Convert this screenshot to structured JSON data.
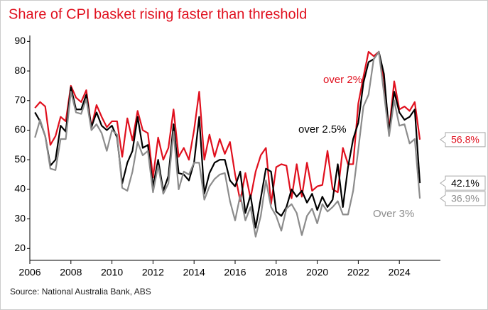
{
  "chart_data": {
    "type": "line",
    "title": "Share of CPI basket rising faster than threshold",
    "source": "Source: National Australia Bank, ABS",
    "x": [
      2006.25,
      2006.5,
      2006.75,
      2007,
      2007.25,
      2007.5,
      2007.75,
      2008,
      2008.25,
      2008.5,
      2008.75,
      2009,
      2009.25,
      2009.5,
      2009.75,
      2010,
      2010.25,
      2010.5,
      2010.75,
      2011,
      2011.25,
      2011.5,
      2011.75,
      2012,
      2012.25,
      2012.5,
      2012.75,
      2013,
      2013.25,
      2013.5,
      2013.75,
      2014,
      2014.25,
      2014.5,
      2014.75,
      2015,
      2015.25,
      2015.5,
      2015.75,
      2016,
      2016.25,
      2016.5,
      2016.75,
      2017,
      2017.25,
      2017.5,
      2017.75,
      2018,
      2018.25,
      2018.5,
      2018.75,
      2019,
      2019.25,
      2019.5,
      2019.75,
      2020,
      2020.25,
      2020.5,
      2020.75,
      2021,
      2021.25,
      2021.5,
      2021.75,
      2022,
      2022.25,
      2022.5,
      2022.75,
      2023,
      2023.25,
      2023.5,
      2023.75,
      2024,
      2024.25,
      2024.5,
      2024.75,
      2025
    ],
    "series": [
      {
        "name": "over 2%",
        "color": "#e0101e",
        "values": [
          67.5,
          69.5,
          68,
          55,
          58,
          64.5,
          63,
          75,
          71,
          69.5,
          73.5,
          61,
          68.5,
          64.5,
          61,
          63,
          63,
          51,
          64,
          56.5,
          66.5,
          60,
          59,
          44,
          57.5,
          50,
          54,
          67,
          51,
          54,
          50,
          60,
          73,
          50,
          58.5,
          51,
          57,
          52,
          56,
          45,
          36,
          45.5,
          37,
          46,
          51.5,
          54,
          35,
          47.5,
          48.5,
          48,
          37,
          48.5,
          37.5,
          49,
          39.5,
          41,
          41.5,
          53,
          40,
          39,
          54,
          48.5,
          48.5,
          69,
          78,
          86.5,
          85,
          86.5,
          77,
          60,
          76.5,
          67,
          68,
          66.5,
          69.5,
          56.8
        ],
        "value_labels": [
          null,
          null,
          null,
          null,
          null,
          null,
          null,
          null,
          null,
          null,
          null,
          null,
          null,
          null,
          null,
          null,
          null,
          null,
          null,
          null,
          null,
          null,
          null,
          null,
          null,
          null,
          null,
          null,
          null,
          null,
          null,
          null,
          null,
          null,
          null,
          null,
          null,
          null,
          null,
          null,
          null,
          null,
          null,
          null,
          null,
          null,
          null,
          null,
          null,
          null,
          null,
          null,
          null,
          null,
          null,
          null,
          null,
          null,
          null,
          null,
          null,
          null,
          null,
          null,
          null,
          null,
          null,
          null,
          null,
          null,
          null,
          null,
          null,
          null,
          null,
          "56.8%"
        ]
      },
      {
        "name": "over 2.5%",
        "color": "#000000",
        "values": [
          66,
          63,
          58,
          48,
          50,
          61.5,
          59.5,
          74.5,
          67,
          67,
          72,
          61,
          66,
          61.5,
          60,
          61.5,
          57.5,
          42,
          49,
          53,
          64.5,
          54,
          55,
          41,
          50,
          39.5,
          44.5,
          62,
          45.5,
          45,
          43,
          49,
          64.5,
          38.5,
          45.5,
          49,
          50,
          50,
          43,
          41,
          46,
          32,
          38,
          27,
          37,
          47,
          46,
          32.5,
          31,
          34,
          40,
          37.5,
          39.5,
          35.5,
          38.5,
          33,
          37.5,
          34,
          36.5,
          48.5,
          34,
          47.5,
          57,
          62.5,
          76,
          83,
          84,
          86.5,
          79,
          59,
          73,
          66,
          63.5,
          64.5,
          67,
          42.1
        ],
        "value_labels": [
          null,
          null,
          null,
          null,
          null,
          null,
          null,
          null,
          null,
          null,
          null,
          null,
          null,
          null,
          null,
          null,
          null,
          null,
          null,
          null,
          null,
          null,
          null,
          null,
          null,
          null,
          null,
          null,
          null,
          null,
          null,
          null,
          null,
          null,
          null,
          null,
          null,
          null,
          null,
          null,
          null,
          null,
          null,
          null,
          null,
          null,
          null,
          null,
          null,
          null,
          null,
          null,
          null,
          null,
          null,
          null,
          null,
          null,
          null,
          null,
          null,
          null,
          null,
          null,
          null,
          null,
          null,
          null,
          null,
          null,
          null,
          null,
          null,
          null,
          null,
          "42.1%"
        ]
      },
      {
        "name": "Over 3%",
        "color": "#8c8c8c",
        "values": [
          57.5,
          63.5,
          58,
          47,
          46.5,
          57,
          57,
          73,
          66,
          65.5,
          70.5,
          60,
          62,
          59,
          53,
          60,
          58.5,
          40.5,
          39.5,
          46,
          56,
          51.5,
          53,
          39,
          48,
          38.5,
          42,
          59.5,
          40,
          46,
          45,
          49,
          49,
          36.5,
          41,
          43.5,
          45,
          45.5,
          36,
          29.5,
          38,
          29.5,
          34,
          24,
          31,
          43,
          34,
          31,
          26,
          33.5,
          35,
          32,
          24.5,
          31,
          33.5,
          28.5,
          35,
          32.5,
          34,
          36,
          31.5,
          31.5,
          39.5,
          53.5,
          68,
          72,
          84,
          86.5,
          72.5,
          58,
          70,
          61.5,
          62,
          55.5,
          57,
          36.9
        ],
        "value_labels": [
          null,
          null,
          null,
          null,
          null,
          null,
          null,
          null,
          null,
          null,
          null,
          null,
          null,
          null,
          null,
          null,
          null,
          null,
          null,
          null,
          null,
          null,
          null,
          null,
          null,
          null,
          null,
          null,
          null,
          null,
          null,
          null,
          null,
          null,
          null,
          null,
          null,
          null,
          null,
          null,
          null,
          null,
          null,
          null,
          null,
          null,
          null,
          null,
          null,
          null,
          null,
          null,
          null,
          null,
          null,
          null,
          null,
          null,
          null,
          null,
          null,
          null,
          null,
          null,
          null,
          null,
          null,
          null,
          null,
          null,
          null,
          null,
          null,
          null,
          null,
          "36.9%"
        ]
      }
    ],
    "xlim": [
      2006,
      2026
    ],
    "xticks": [
      2006,
      2008,
      2010,
      2012,
      2014,
      2016,
      2018,
      2020,
      2022,
      2024
    ],
    "ylim": [
      16,
      92
    ],
    "yticks": [
      20,
      30,
      40,
      50,
      60,
      70,
      80,
      90
    ],
    "grid": false
  }
}
